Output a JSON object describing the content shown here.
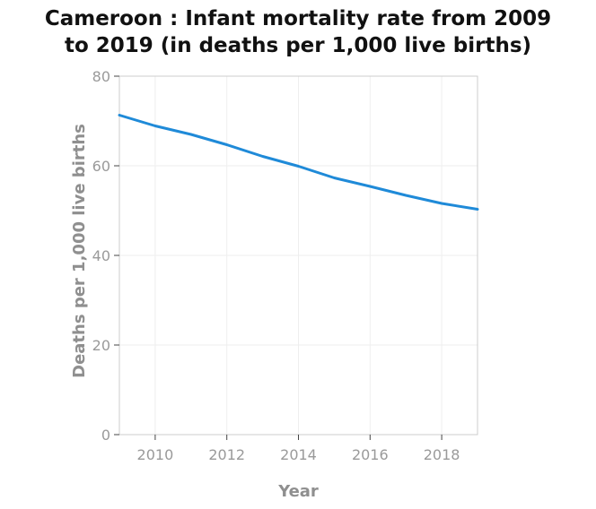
{
  "chart_data": {
    "type": "line",
    "title_line1": "Cameroon : Infant mortality rate from 2009",
    "title_line2": "to 2019 (in deaths per 1,000 live births)",
    "xlabel": "Year",
    "ylabel": "Deaths per 1,000 live births",
    "xlim": [
      2009,
      2019
    ],
    "ylim": [
      0,
      80
    ],
    "x_ticks": [
      2010,
      2012,
      2014,
      2016,
      2018
    ],
    "y_ticks": [
      0,
      20,
      40,
      60,
      80
    ],
    "grid": true,
    "line_color": "#1f8ad8",
    "series": [
      {
        "x": [
          2009,
          2010,
          2011,
          2012,
          2013,
          2014,
          2015,
          2016,
          2017,
          2018,
          2019
        ],
        "values": [
          71.3,
          68.9,
          67.0,
          64.7,
          62.1,
          59.9,
          57.3,
          55.4,
          53.4,
          51.6,
          50.3
        ]
      }
    ]
  }
}
